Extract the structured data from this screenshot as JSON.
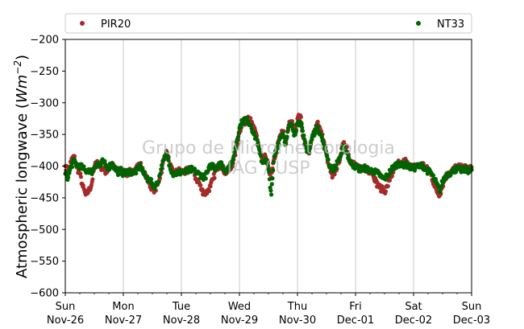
{
  "chart_data": {
    "type": "scatter",
    "ylabel_main": "Atmospheric longwave (",
    "ylabel_unit": "Wm",
    "ylabel_exp": "−2",
    "ylabel_close": ")",
    "ylim": [
      -600,
      -200
    ],
    "xlim": [
      0,
      7
    ],
    "y_ticks": [
      -600,
      -550,
      -500,
      -450,
      -400,
      -350,
      -300,
      -250,
      -200
    ],
    "y_tick_labels": [
      "−600",
      "−550",
      "−500",
      "−450",
      "−400",
      "−350",
      "−300",
      "−250",
      "−200"
    ],
    "x_ticks": [
      {
        "day": 0,
        "line1": "Sun",
        "line2": "Nov-26"
      },
      {
        "day": 1,
        "line1": "Mon",
        "line2": "Nov-27"
      },
      {
        "day": 2,
        "line1": "Tue",
        "line2": "Nov-28"
      },
      {
        "day": 3,
        "line1": "Wed",
        "line2": "Nov-29"
      },
      {
        "day": 4,
        "line1": "Thu",
        "line2": "Nov-30"
      },
      {
        "day": 5,
        "line1": "Fri",
        "line2": "Dec-01"
      },
      {
        "day": 6,
        "line1": "Sat",
        "line2": "Dec-02"
      },
      {
        "day": 7,
        "line1": "Sun",
        "line2": "Dec-03"
      }
    ],
    "grid": "vertical",
    "legend_position": "top",
    "watermark_line1": "Grupo de Micrometeorologia",
    "watermark_line2": "IAG / USP",
    "series": [
      {
        "name": "PIR20",
        "color": "#a52a2a",
        "points": [
          [
            0.0,
            -400
          ],
          [
            0.05,
            -410
          ],
          [
            0.1,
            -392
          ],
          [
            0.15,
            -384
          ],
          [
            0.2,
            -402
          ],
          [
            0.25,
            -412
          ],
          [
            0.3,
            -432
          ],
          [
            0.35,
            -445
          ],
          [
            0.4,
            -440
          ],
          [
            0.45,
            -430
          ],
          [
            0.5,
            -402
          ],
          [
            0.55,
            -392
          ],
          [
            0.6,
            -400
          ],
          [
            0.65,
            -404
          ],
          [
            0.7,
            -410
          ],
          [
            0.75,
            -404
          ],
          [
            0.8,
            -398
          ],
          [
            0.85,
            -403
          ],
          [
            0.9,
            -408
          ],
          [
            0.95,
            -405
          ],
          [
            1.0,
            -408
          ],
          [
            1.05,
            -412
          ],
          [
            1.1,
            -410
          ],
          [
            1.15,
            -406
          ],
          [
            1.2,
            -410
          ],
          [
            1.25,
            -400
          ],
          [
            1.3,
            -395
          ],
          [
            1.35,
            -410
          ],
          [
            1.4,
            -418
          ],
          [
            1.45,
            -428
          ],
          [
            1.5,
            -435
          ],
          [
            1.55,
            -438
          ],
          [
            1.6,
            -425
          ],
          [
            1.65,
            -410
          ],
          [
            1.7,
            -388
          ],
          [
            1.75,
            -378
          ],
          [
            1.8,
            -398
          ],
          [
            1.85,
            -410
          ],
          [
            1.9,
            -410
          ],
          [
            1.95,
            -407
          ],
          [
            2.0,
            -408
          ],
          [
            2.05,
            -410
          ],
          [
            2.1,
            -407
          ],
          [
            2.15,
            -405
          ],
          [
            2.2,
            -406
          ],
          [
            2.25,
            -420
          ],
          [
            2.3,
            -425
          ],
          [
            2.35,
            -438
          ],
          [
            2.4,
            -443
          ],
          [
            2.45,
            -440
          ],
          [
            2.5,
            -432
          ],
          [
            2.55,
            -420
          ],
          [
            2.6,
            -405
          ],
          [
            2.65,
            -398
          ],
          [
            2.7,
            -400
          ],
          [
            2.75,
            -410
          ],
          [
            2.8,
            -408
          ],
          [
            2.85,
            -405
          ],
          [
            2.9,
            -390
          ],
          [
            2.95,
            -372
          ],
          [
            3.0,
            -345
          ],
          [
            3.05,
            -332
          ],
          [
            3.1,
            -330
          ],
          [
            3.15,
            -322
          ],
          [
            3.2,
            -330
          ],
          [
            3.25,
            -342
          ],
          [
            3.3,
            -352
          ],
          [
            3.35,
            -378
          ],
          [
            3.4,
            -392
          ],
          [
            3.45,
            -385
          ],
          [
            3.5,
            -402
          ],
          [
            3.55,
            -418
          ],
          [
            3.6,
            -388
          ],
          [
            3.65,
            -372
          ],
          [
            3.7,
            -352
          ],
          [
            3.75,
            -345
          ],
          [
            3.8,
            -362
          ],
          [
            3.85,
            -335
          ],
          [
            3.9,
            -330
          ],
          [
            3.95,
            -345
          ],
          [
            4.0,
            -325
          ],
          [
            4.05,
            -320
          ],
          [
            4.1,
            -355
          ],
          [
            4.15,
            -370
          ],
          [
            4.2,
            -380
          ],
          [
            4.25,
            -358
          ],
          [
            4.3,
            -342
          ],
          [
            4.35,
            -330
          ],
          [
            4.4,
            -345
          ],
          [
            4.45,
            -360
          ],
          [
            4.5,
            -382
          ],
          [
            4.55,
            -402
          ],
          [
            4.6,
            -418
          ],
          [
            4.65,
            -408
          ],
          [
            4.7,
            -396
          ],
          [
            4.75,
            -380
          ],
          [
            4.8,
            -362
          ],
          [
            4.85,
            -370
          ],
          [
            4.9,
            -390
          ],
          [
            4.95,
            -395
          ],
          [
            5.0,
            -398
          ],
          [
            5.05,
            -404
          ],
          [
            5.1,
            -404
          ],
          [
            5.15,
            -402
          ],
          [
            5.2,
            -406
          ],
          [
            5.25,
            -408
          ],
          [
            5.3,
            -410
          ],
          [
            5.35,
            -425
          ],
          [
            5.4,
            -432
          ],
          [
            5.45,
            -436
          ],
          [
            5.5,
            -440
          ],
          [
            5.55,
            -432
          ],
          [
            5.6,
            -418
          ],
          [
            5.65,
            -410
          ],
          [
            5.7,
            -400
          ],
          [
            5.75,
            -395
          ],
          [
            5.8,
            -398
          ],
          [
            5.85,
            -390
          ],
          [
            5.9,
            -398
          ],
          [
            5.95,
            -400
          ],
          [
            6.0,
            -402
          ],
          [
            6.05,
            -398
          ],
          [
            6.1,
            -400
          ],
          [
            6.15,
            -396
          ],
          [
            6.2,
            -402
          ],
          [
            6.25,
            -406
          ],
          [
            6.3,
            -412
          ],
          [
            6.35,
            -428
          ],
          [
            6.4,
            -440
          ],
          [
            6.45,
            -445
          ],
          [
            6.5,
            -430
          ],
          [
            6.55,
            -418
          ],
          [
            6.6,
            -410
          ],
          [
            6.65,
            -408
          ],
          [
            6.7,
            -404
          ],
          [
            6.75,
            -400
          ],
          [
            6.8,
            -402
          ],
          [
            6.85,
            -404
          ],
          [
            6.9,
            -402
          ],
          [
            6.95,
            -404
          ],
          [
            7.0,
            -402
          ]
        ]
      },
      {
        "name": "NT33",
        "color": "#006400",
        "points": [
          [
            0.0,
            -412
          ],
          [
            0.05,
            -418
          ],
          [
            0.1,
            -400
          ],
          [
            0.15,
            -392
          ],
          [
            0.2,
            -398
          ],
          [
            0.25,
            -400
          ],
          [
            0.3,
            -403
          ],
          [
            0.35,
            -408
          ],
          [
            0.4,
            -405
          ],
          [
            0.45,
            -410
          ],
          [
            0.5,
            -402
          ],
          [
            0.55,
            -395
          ],
          [
            0.6,
            -400
          ],
          [
            0.65,
            -392
          ],
          [
            0.7,
            -400
          ],
          [
            0.75,
            -402
          ],
          [
            0.8,
            -396
          ],
          [
            0.85,
            -402
          ],
          [
            0.9,
            -410
          ],
          [
            0.95,
            -406
          ],
          [
            1.0,
            -412
          ],
          [
            1.05,
            -410
          ],
          [
            1.1,
            -408
          ],
          [
            1.15,
            -410
          ],
          [
            1.2,
            -410
          ],
          [
            1.25,
            -405
          ],
          [
            1.3,
            -400
          ],
          [
            1.35,
            -412
          ],
          [
            1.4,
            -418
          ],
          [
            1.45,
            -422
          ],
          [
            1.5,
            -428
          ],
          [
            1.55,
            -432
          ],
          [
            1.6,
            -425
          ],
          [
            1.65,
            -405
          ],
          [
            1.7,
            -390
          ],
          [
            1.75,
            -380
          ],
          [
            1.8,
            -398
          ],
          [
            1.85,
            -412
          ],
          [
            1.9,
            -412
          ],
          [
            1.95,
            -410
          ],
          [
            2.0,
            -410
          ],
          [
            2.05,
            -408
          ],
          [
            2.1,
            -410
          ],
          [
            2.15,
            -406
          ],
          [
            2.2,
            -405
          ],
          [
            2.25,
            -410
          ],
          [
            2.3,
            -412
          ],
          [
            2.35,
            -415
          ],
          [
            2.4,
            -418
          ],
          [
            2.45,
            -410
          ],
          [
            2.5,
            -400
          ],
          [
            2.55,
            -398
          ],
          [
            2.6,
            -405
          ],
          [
            2.65,
            -395
          ],
          [
            2.7,
            -398
          ],
          [
            2.75,
            -408
          ],
          [
            2.8,
            -402
          ],
          [
            2.85,
            -400
          ],
          [
            2.9,
            -385
          ],
          [
            2.95,
            -362
          ],
          [
            3.0,
            -340
          ],
          [
            3.05,
            -330
          ],
          [
            3.1,
            -325
          ],
          [
            3.15,
            -330
          ],
          [
            3.2,
            -335
          ],
          [
            3.25,
            -350
          ],
          [
            3.3,
            -358
          ],
          [
            3.35,
            -380
          ],
          [
            3.4,
            -395
          ],
          [
            3.45,
            -388
          ],
          [
            3.5,
            -405
          ],
          [
            3.55,
            -445
          ],
          [
            3.6,
            -385
          ],
          [
            3.65,
            -370
          ],
          [
            3.7,
            -355
          ],
          [
            3.75,
            -348
          ],
          [
            3.8,
            -365
          ],
          [
            3.85,
            -338
          ],
          [
            3.9,
            -335
          ],
          [
            3.95,
            -350
          ],
          [
            4.0,
            -332
          ],
          [
            4.05,
            -330
          ],
          [
            4.1,
            -352
          ],
          [
            4.15,
            -372
          ],
          [
            4.2,
            -378
          ],
          [
            4.25,
            -355
          ],
          [
            4.3,
            -345
          ],
          [
            4.35,
            -338
          ],
          [
            4.4,
            -350
          ],
          [
            4.45,
            -365
          ],
          [
            4.5,
            -380
          ],
          [
            4.55,
            -398
          ],
          [
            4.6,
            -405
          ],
          [
            4.65,
            -402
          ],
          [
            4.7,
            -392
          ],
          [
            4.75,
            -382
          ],
          [
            4.8,
            -370
          ],
          [
            4.85,
            -378
          ],
          [
            4.9,
            -392
          ],
          [
            4.95,
            -398
          ],
          [
            5.0,
            -400
          ],
          [
            5.05,
            -404
          ],
          [
            5.1,
            -405
          ],
          [
            5.15,
            -403
          ],
          [
            5.2,
            -405
          ],
          [
            5.25,
            -406
          ],
          [
            5.3,
            -408
          ],
          [
            5.35,
            -410
          ],
          [
            5.4,
            -412
          ],
          [
            5.45,
            -418
          ],
          [
            5.5,
            -420
          ],
          [
            5.55,
            -415
          ],
          [
            5.6,
            -408
          ],
          [
            5.65,
            -402
          ],
          [
            5.7,
            -398
          ],
          [
            5.75,
            -395
          ],
          [
            5.8,
            -400
          ],
          [
            5.85,
            -396
          ],
          [
            5.9,
            -400
          ],
          [
            5.95,
            -402
          ],
          [
            6.0,
            -404
          ],
          [
            6.05,
            -400
          ],
          [
            6.1,
            -402
          ],
          [
            6.15,
            -398
          ],
          [
            6.2,
            -404
          ],
          [
            6.25,
            -408
          ],
          [
            6.3,
            -410
          ],
          [
            6.35,
            -420
          ],
          [
            6.4,
            -428
          ],
          [
            6.45,
            -440
          ],
          [
            6.5,
            -425
          ],
          [
            6.55,
            -415
          ],
          [
            6.6,
            -412
          ],
          [
            6.65,
            -410
          ],
          [
            6.7,
            -406
          ],
          [
            6.75,
            -404
          ],
          [
            6.8,
            -406
          ],
          [
            6.85,
            -407
          ],
          [
            6.9,
            -405
          ],
          [
            6.95,
            -407
          ],
          [
            7.0,
            -406
          ]
        ]
      }
    ]
  }
}
